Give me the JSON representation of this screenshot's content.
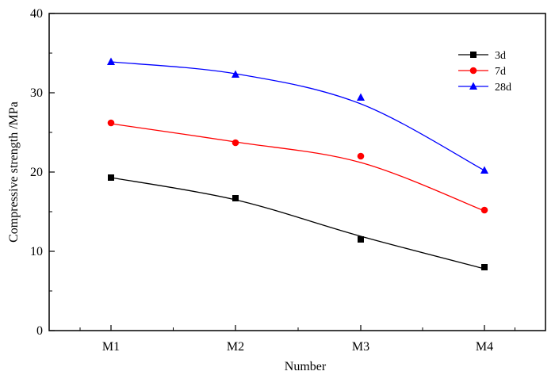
{
  "chart_data": {
    "type": "line",
    "title": "",
    "xlabel": "Number",
    "ylabel": "Compressive strength  /MPa",
    "categories": [
      "M1",
      "M2",
      "M3",
      "M4"
    ],
    "ylim": [
      0,
      40
    ],
    "yticks": [
      0,
      10,
      20,
      30,
      40
    ],
    "grid": false,
    "legend_position": "top-right",
    "series": [
      {
        "name": "3d",
        "marker": "square",
        "color": "#000000",
        "values": [
          19.3,
          16.7,
          11.5,
          8.0
        ]
      },
      {
        "name": "7d",
        "marker": "circle",
        "color": "#ff0000",
        "values": [
          26.2,
          23.7,
          22.0,
          15.2
        ]
      },
      {
        "name": "28d",
        "marker": "triangle",
        "color": "#0000ff",
        "values": [
          33.9,
          32.3,
          29.4,
          20.2
        ]
      }
    ],
    "fit_curves": [
      {
        "series": "3d",
        "values": [
          19.3,
          16.5,
          11.9,
          7.8
        ]
      },
      {
        "series": "7d",
        "values": [
          26.1,
          23.8,
          21.2,
          15.1
        ]
      },
      {
        "series": "28d",
        "values": [
          33.9,
          32.4,
          28.6,
          20.2
        ]
      }
    ]
  }
}
